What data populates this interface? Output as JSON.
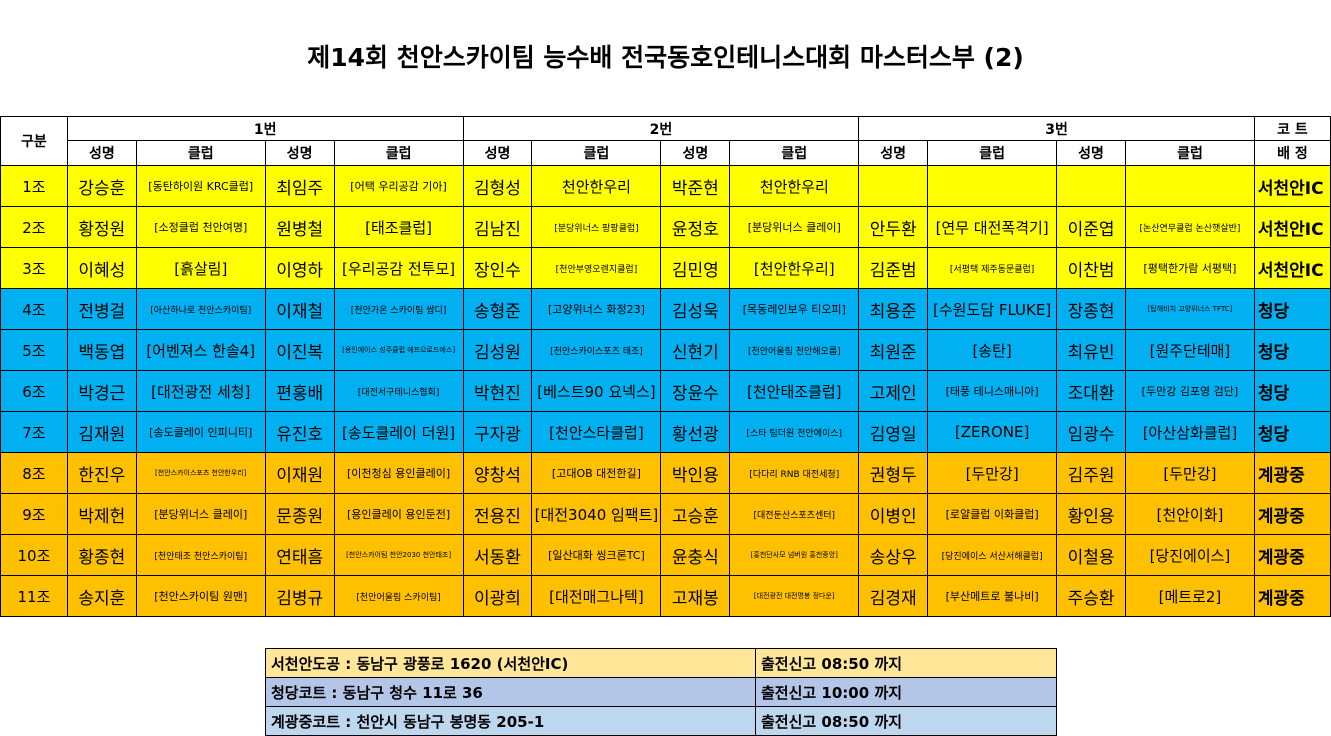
{
  "title": "제14회 천안스카이팀 능수배 전국동호인테니스대회 마스터스부 (2)",
  "header": {
    "group_label": "구분",
    "slots": [
      "1번",
      "2번",
      "3번"
    ],
    "court_top": "코 트",
    "court_bottom": "배 정",
    "name_label": "성명",
    "club_label": "클럽"
  },
  "row_colors": {
    "yellow": "#ffff00",
    "blue": "#00b0f0",
    "orange": "#ffc000"
  },
  "rows": [
    {
      "jo": "1조",
      "color": "yellow",
      "court": "서천안IC",
      "cells": [
        {
          "name": "강승훈",
          "club": "[동탄하이원 KRC클럽]",
          "size": "s"
        },
        {
          "name": "최임주",
          "club": "[어택 우리공감 기아]",
          "size": "s"
        },
        {
          "name": "김형성",
          "club": "천안한우리",
          "size": ""
        },
        {
          "name": "박준현",
          "club": "천안한우리",
          "size": ""
        },
        {
          "name": "",
          "club": "",
          "size": ""
        },
        {
          "name": "",
          "club": "",
          "size": ""
        }
      ]
    },
    {
      "jo": "2조",
      "color": "yellow",
      "court": "서천안IC",
      "cells": [
        {
          "name": "황정원",
          "club": "[소정클럽 천안여명]",
          "size": "s"
        },
        {
          "name": "원병철",
          "club": "[태조클럽]",
          "size": ""
        },
        {
          "name": "김남진",
          "club": "[분당위너스 팡팡클럽]",
          "size": "xs"
        },
        {
          "name": "윤정호",
          "club": "[분당위너스 클레이]",
          "size": "s"
        },
        {
          "name": "안두환",
          "club": "[연무 대전폭격기]",
          "size": ""
        },
        {
          "name": "이준엽",
          "club": "[논산연무클럽 논산햇살반]",
          "size": "xs"
        }
      ]
    },
    {
      "jo": "3조",
      "color": "yellow",
      "court": "서천안IC",
      "cells": [
        {
          "name": "이혜성",
          "club": "[흙살림]",
          "size": ""
        },
        {
          "name": "이영하",
          "club": "[우리공감 전투모]",
          "size": ""
        },
        {
          "name": "장인수",
          "club": "[천안부영오렌지클럽]",
          "size": "xs"
        },
        {
          "name": "김민영",
          "club": "[천안한우리]",
          "size": ""
        },
        {
          "name": "김준범",
          "club": "[서평택 제주동문클럽]",
          "size": "xs"
        },
        {
          "name": "이찬범",
          "club": "[평택한가람 서평택]",
          "size": "s"
        }
      ]
    },
    {
      "jo": "4조",
      "color": "blue",
      "court": "청당",
      "cells": [
        {
          "name": "전병걸",
          "club": "[아산하나로 천안스카이팀]",
          "size": "xs"
        },
        {
          "name": "이재철",
          "club": "[천안가온 스카이팀 쌈디]",
          "size": "xs"
        },
        {
          "name": "송형준",
          "club": "[고양위너스 화정23]",
          "size": "s"
        },
        {
          "name": "김성욱",
          "club": "[목동레인보우 티오피]",
          "size": "s"
        },
        {
          "name": "최용준",
          "club": "[수원도담 FLUKE]",
          "size": ""
        },
        {
          "name": "장종현",
          "club": "[탑헤비치 고양위너스 TFTC]",
          "size": "xxs"
        }
      ]
    },
    {
      "jo": "5조",
      "color": "blue",
      "court": "청당",
      "cells": [
        {
          "name": "백동엽",
          "club": "[어벤져스 한솔4]",
          "size": ""
        },
        {
          "name": "이진복",
          "club": "[용인에이스 성주클럽 에프으로드에스]",
          "size": "xxs"
        },
        {
          "name": "김성원",
          "club": "[천안스카이스포츠 태조]",
          "size": "xs"
        },
        {
          "name": "신현기",
          "club": "[천안어울림 천안해오름]",
          "size": "xs"
        },
        {
          "name": "최원준",
          "club": "[송탄]",
          "size": ""
        },
        {
          "name": "최유빈",
          "club": "[원주단테매]",
          "size": ""
        }
      ]
    },
    {
      "jo": "6조",
      "color": "blue",
      "court": "청당",
      "cells": [
        {
          "name": "박경근",
          "club": "[대전광전 세청]",
          "size": ""
        },
        {
          "name": "편홍배",
          "club": "[대전서구테니스협회]",
          "size": "xs"
        },
        {
          "name": "박현진",
          "club": "[베스트90 요넥스]",
          "size": ""
        },
        {
          "name": "장윤수",
          "club": "[천안태조클럽]",
          "size": ""
        },
        {
          "name": "고제인",
          "club": "[태풍 테니스매니아]",
          "size": "s"
        },
        {
          "name": "조대환",
          "club": "[두만강 김포영 검단]",
          "size": "s"
        }
      ]
    },
    {
      "jo": "7조",
      "color": "blue",
      "court": "청당",
      "cells": [
        {
          "name": "김재원",
          "club": "[송도클레이 인피니티]",
          "size": "s"
        },
        {
          "name": "유진호",
          "club": "[송도클레이 더원]",
          "size": ""
        },
        {
          "name": "구자광",
          "club": "[천안스타클럽]",
          "size": ""
        },
        {
          "name": "황선광",
          "club": "[스타 팀더원 천안에이스]",
          "size": "xs"
        },
        {
          "name": "김영일",
          "club": "[ZERONE]",
          "size": ""
        },
        {
          "name": "임광수",
          "club": "[아산삼화클럽]",
          "size": ""
        }
      ]
    },
    {
      "jo": "8조",
      "color": "orange",
      "court": "계광중",
      "cells": [
        {
          "name": "한진우",
          "club": "[천안스카이스포츠 천안한우리]",
          "size": "xxs"
        },
        {
          "name": "이재원",
          "club": "[이천청심 용인클레이]",
          "size": "s"
        },
        {
          "name": "양창석",
          "club": "[고대OB 대전한길]",
          "size": "s"
        },
        {
          "name": "박인용",
          "club": "[다다리 RNB 대전세청]",
          "size": "xs"
        },
        {
          "name": "권형두",
          "club": "[두만강]",
          "size": ""
        },
        {
          "name": "김주원",
          "club": "[두만강]",
          "size": ""
        }
      ]
    },
    {
      "jo": "9조",
      "color": "orange",
      "court": "계광중",
      "cells": [
        {
          "name": "박제헌",
          "club": "[분당위너스 클레이]",
          "size": "s"
        },
        {
          "name": "문종원",
          "club": "[용인클레이 용인둔전]",
          "size": "s"
        },
        {
          "name": "전용진",
          "club": "[대전3040 임팩트]",
          "size": ""
        },
        {
          "name": "고승훈",
          "club": "[대전둔산스포츠센터]",
          "size": "xs"
        },
        {
          "name": "이병인",
          "club": "[로얄클럽 이화클럽]",
          "size": "s"
        },
        {
          "name": "황인용",
          "club": "[천안이화]",
          "size": ""
        }
      ]
    },
    {
      "jo": "10조",
      "color": "orange",
      "court": "계광중",
      "cells": [
        {
          "name": "황종현",
          "club": "[천안태조 천안스카이팀]",
          "size": "xs"
        },
        {
          "name": "연태흠",
          "club": "[천안스카이팀 천안2030 천안태조]",
          "size": "xxs"
        },
        {
          "name": "서동환",
          "club": "[일산대화 씽크론TC]",
          "size": "s"
        },
        {
          "name": "윤충식",
          "club": "[홍천단사모 넘버원 홍천중앙]",
          "size": "xxs"
        },
        {
          "name": "송상우",
          "club": "[당진에이스 서산서해클럽]",
          "size": "xs"
        },
        {
          "name": "이철용",
          "club": "[당진에이스]",
          "size": ""
        }
      ]
    },
    {
      "jo": "11조",
      "color": "orange",
      "court": "계광중",
      "cells": [
        {
          "name": "송지훈",
          "club": "[천안스카이팀 원맨]",
          "size": "s"
        },
        {
          "name": "김병규",
          "club": "[천안어울림 스카이팀]",
          "size": "xs"
        },
        {
          "name": "이광희",
          "club": "[대전매그나텍]",
          "size": ""
        },
        {
          "name": "고재봉",
          "club": "[대전광전 대전명봉 정다운]",
          "size": "xxs"
        },
        {
          "name": "김경재",
          "club": "[부산메트로 불나비]",
          "size": "s"
        },
        {
          "name": "주승환",
          "club": "[메트로2]",
          "size": ""
        }
      ]
    }
  ],
  "info": [
    {
      "place": "서천안도공 : 동남구 광풍로 1620  (서천안IC)",
      "check": "출전신고 08:50 까지"
    },
    {
      "place": "청당코트 : 동남구 청수 11로 36",
      "check": "출전신고 10:00 까지"
    },
    {
      "place": "계광중코트 : 천안시 동남구 봉명동 205-1",
      "check": "출전신고 08:50 까지"
    }
  ]
}
